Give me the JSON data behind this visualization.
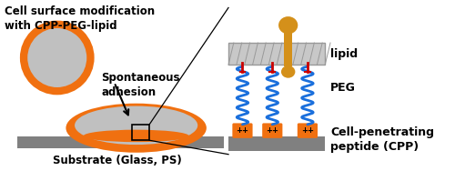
{
  "bg_color": "#ffffff",
  "cell_color": "#c0c0c0",
  "cell_border_color": "#f07010",
  "orange_color": "#f07010",
  "dark_gray": "#808080",
  "medium_gray": "#999999",
  "light_gray": "#c8c8c8",
  "blue_color": "#1a6fdc",
  "red_color": "#cc0000",
  "gold_color": "#d4901a",
  "text_color": "#000000",
  "title_text": "Cell surface modification\nwith CPP-PEG-lipid",
  "adhesion_text": "Spontaneous\nadhesion",
  "substrate_text": "Substrate (Glass, PS)",
  "lipid_label": "lipid",
  "peg_label": "PEG",
  "cpp_label": "Cell-penetrating\npeptide (CPP)"
}
